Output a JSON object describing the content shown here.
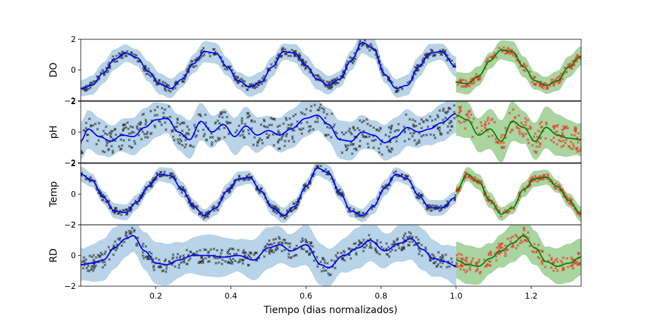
{
  "colors": {
    "train_band": "#b9d3e8",
    "test_band": "#a8d5a0",
    "train_mean": "#0000ff",
    "test_mean": "#008000",
    "train_points": "#000000",
    "test_points": "#ff0000",
    "axes": "#000000"
  },
  "chart_data": {
    "type": "line",
    "xlabel": "Tiempo (dias normalizados)",
    "xlim": [
      0.0,
      1.333
    ],
    "x_ticks": [
      0.2,
      0.4,
      0.6,
      0.8,
      1.0,
      1.2
    ],
    "x_tick_labels": [
      "0.2",
      "0.4",
      "0.6",
      "0.8",
      "1.0",
      "1.2"
    ],
    "split_x": 1.0,
    "grid": false,
    "legend": "none",
    "panels": [
      {
        "ylabel": "DO",
        "ylim": [
          -2,
          2
        ],
        "y_ticks": [
          -2,
          0,
          2
        ],
        "y_tick_labels": [
          "−2",
          "0",
          "2"
        ],
        "train_mean": {
          "x": [
            0.0,
            0.03,
            0.06,
            0.09,
            0.12,
            0.15,
            0.18,
            0.21,
            0.24,
            0.27,
            0.3,
            0.33,
            0.36,
            0.39,
            0.42,
            0.45,
            0.48,
            0.51,
            0.54,
            0.57,
            0.6,
            0.63,
            0.66,
            0.69,
            0.72,
            0.75,
            0.78,
            0.81,
            0.84,
            0.87,
            0.9,
            0.93,
            0.96,
            1.0
          ],
          "y": [
            -1.2,
            -1.0,
            -0.2,
            0.7,
            1.1,
            0.8,
            -0.1,
            -0.9,
            -1.2,
            -0.6,
            0.4,
            1.2,
            1.1,
            0.2,
            -0.7,
            -1.1,
            -0.8,
            0.2,
            1.2,
            1.1,
            0.3,
            -0.6,
            -1.0,
            -0.6,
            0.6,
            1.8,
            1.4,
            -0.3,
            -1.2,
            -1.0,
            0.2,
            1.1,
            1.2,
            0.2
          ]
        },
        "train_band_halfwidth": 0.6,
        "test_mean": {
          "x": [
            1.0,
            1.03,
            1.06,
            1.09,
            1.12,
            1.15,
            1.18,
            1.21,
            1.24,
            1.27,
            1.3,
            1.333
          ],
          "y": [
            -0.8,
            -0.9,
            -0.4,
            0.6,
            1.3,
            1.2,
            0.2,
            -0.7,
            -1.0,
            -0.7,
            0.2,
            0.9
          ]
        },
        "test_band_halfwidth": 0.6,
        "noise": 0.25,
        "test_noise": 0.25
      },
      {
        "ylabel": "pH",
        "ylim": [
          -2,
          2
        ],
        "y_ticks": [
          -2,
          0,
          2
        ],
        "y_tick_labels": [
          "−2",
          "0",
          "2"
        ],
        "train_mean": {
          "x": [
            0.0,
            0.02,
            0.05,
            0.08,
            0.11,
            0.14,
            0.17,
            0.2,
            0.23,
            0.26,
            0.29,
            0.32,
            0.35,
            0.38,
            0.41,
            0.44,
            0.47,
            0.5,
            0.53,
            0.56,
            0.6,
            0.63,
            0.66,
            0.69,
            0.72,
            0.75,
            0.78,
            0.81,
            0.84,
            0.87,
            0.9,
            0.93,
            0.96,
            1.0
          ],
          "y": [
            -0.6,
            0.2,
            -0.3,
            -0.6,
            -0.2,
            -0.3,
            0.3,
            0.8,
            0.9,
            0.0,
            -0.5,
            0.7,
            0.0,
            0.5,
            -0.3,
            0.4,
            -0.2,
            0.1,
            -0.2,
            0.2,
            0.9,
            1.1,
            0.5,
            -0.5,
            -0.6,
            0.0,
            -0.2,
            -0.7,
            -0.3,
            0.3,
            0.0,
            0.2,
            0.6,
            1.2
          ]
        },
        "train_band_halfwidth": 1.1,
        "test_mean": {
          "x": [
            1.0,
            1.03,
            1.06,
            1.09,
            1.12,
            1.15,
            1.18,
            1.21,
            1.24,
            1.27,
            1.3,
            1.333
          ],
          "y": [
            1.1,
            0.8,
            -0.2,
            0.2,
            -0.6,
            0.7,
            0.3,
            -0.6,
            0.3,
            -0.2,
            -0.4,
            -0.5
          ]
        },
        "test_band_halfwidth": 1.2,
        "noise": 0.9,
        "test_noise": 0.8
      },
      {
        "ylabel": "Temp",
        "ylim": [
          -2,
          2
        ],
        "y_ticks": [
          -2,
          0,
          2
        ],
        "y_tick_labels": [
          "−2",
          "0",
          "2"
        ],
        "train_mean": {
          "x": [
            0.0,
            0.03,
            0.06,
            0.09,
            0.12,
            0.15,
            0.18,
            0.21,
            0.24,
            0.27,
            0.3,
            0.33,
            0.36,
            0.39,
            0.42,
            0.45,
            0.48,
            0.51,
            0.54,
            0.57,
            0.6,
            0.63,
            0.66,
            0.69,
            0.72,
            0.75,
            0.78,
            0.81,
            0.84,
            0.87,
            0.9,
            0.93,
            0.96,
            1.0
          ],
          "y": [
            1.3,
            0.9,
            -0.2,
            -1.1,
            -1.2,
            -0.5,
            0.5,
            1.3,
            1.2,
            0.3,
            -0.8,
            -1.4,
            -0.9,
            0.2,
            1.0,
            1.1,
            0.2,
            -0.9,
            -1.4,
            -0.8,
            0.5,
            1.7,
            1.4,
            0.1,
            -1.1,
            -1.4,
            -0.8,
            0.4,
            1.3,
            1.0,
            -0.1,
            -0.9,
            -0.9,
            -0.2
          ]
        },
        "train_band_halfwidth": 0.45,
        "test_mean": {
          "x": [
            1.0,
            1.03,
            1.06,
            1.09,
            1.12,
            1.15,
            1.18,
            1.21,
            1.24,
            1.27,
            1.3,
            1.333
          ],
          "y": [
            0.2,
            1.3,
            0.8,
            -0.4,
            -1.3,
            -0.9,
            0.3,
            1.0,
            1.1,
            0.5,
            -0.4,
            -1.3
          ]
        },
        "test_band_halfwidth": 0.45,
        "noise": 0.2,
        "test_noise": 0.2
      },
      {
        "ylabel": "RD",
        "ylim": [
          -2,
          2
        ],
        "y_ticks": [
          -2,
          0,
          2
        ],
        "y_tick_labels": [
          "−2",
          "0",
          "2"
        ],
        "train_mean": {
          "x": [
            0.0,
            0.03,
            0.06,
            0.09,
            0.12,
            0.14,
            0.17,
            0.2,
            0.23,
            0.26,
            0.3,
            0.34,
            0.38,
            0.42,
            0.46,
            0.5,
            0.53,
            0.56,
            0.6,
            0.64,
            0.66,
            0.7,
            0.74,
            0.77,
            0.81,
            0.85,
            0.88,
            0.91,
            0.94,
            0.97,
            1.0
          ],
          "y": [
            -0.6,
            -0.5,
            -0.3,
            0.5,
            1.1,
            1.3,
            0.3,
            -0.5,
            -0.6,
            -0.3,
            0.0,
            0.0,
            -0.1,
            0.0,
            -0.3,
            0.5,
            0.7,
            0.3,
            0.7,
            -0.6,
            -0.8,
            0.0,
            0.5,
            1.0,
            0.3,
            0.8,
            1.1,
            0.4,
            -0.2,
            -0.4,
            -0.7
          ]
        },
        "train_band_halfwidth": 1.2,
        "test_mean": {
          "x": [
            1.0,
            1.03,
            1.06,
            1.09,
            1.12,
            1.15,
            1.18,
            1.21,
            1.24,
            1.27,
            1.3,
            1.333
          ],
          "y": [
            -0.3,
            -0.6,
            -0.7,
            -0.2,
            0.3,
            0.8,
            1.3,
            0.5,
            -0.4,
            -0.7,
            -0.5,
            -0.1
          ]
        },
        "test_band_halfwidth": 1.1,
        "noise": 0.5,
        "test_noise": 0.5
      }
    ]
  }
}
